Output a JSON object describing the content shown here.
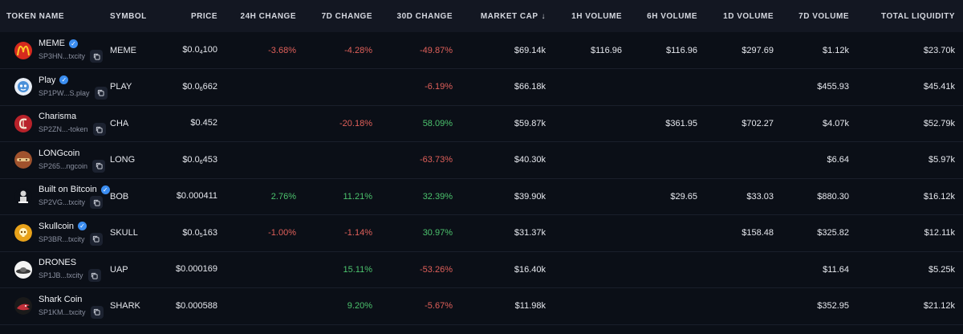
{
  "headers": {
    "token_name": "TOKEN NAME",
    "symbol": "SYMBOL",
    "price": "PRICE",
    "change_24h": "24H CHANGE",
    "change_7d": "7D CHANGE",
    "change_30d": "30D CHANGE",
    "market_cap": "MARKET CAP",
    "market_cap_sort_icon": "↓",
    "vol_1h": "1H VOLUME",
    "vol_6h": "6H VOLUME",
    "vol_1d": "1D VOLUME",
    "vol_7d": "7D VOLUME",
    "liquidity": "TOTAL LIQUIDITY"
  },
  "rows": [
    {
      "name": "MEME",
      "verified": true,
      "address": "SP3HN...txcity",
      "symbol": "MEME",
      "price_prefix": "$0.0",
      "price_sub": "4",
      "price_rest": "100",
      "c24": "-3.68%",
      "c24_dir": "neg",
      "c7": "-4.28%",
      "c7_dir": "neg",
      "c30": "-49.87%",
      "c30_dir": "neg",
      "mcap": "$69.14k",
      "v1h": "$116.96",
      "v6h": "$116.96",
      "v1d": "$297.69",
      "v7d": "$1.12k",
      "liq": "$23.70k",
      "logo": "golden-arches-icon",
      "logo_color": "#d62a1e"
    },
    {
      "name": "Play",
      "verified": true,
      "address": "SP1PW...S.play",
      "symbol": "PLAY",
      "price_prefix": "$0.0",
      "price_sub": "6",
      "price_rest": "662",
      "c24": "",
      "c24_dir": "",
      "c7": "",
      "c7_dir": "",
      "c30": "-6.19%",
      "c30_dir": "neg",
      "mcap": "$66.18k",
      "v1h": "",
      "v6h": "",
      "v1d": "",
      "v7d": "$455.93",
      "liq": "$45.41k",
      "logo": "play-mascot-icon",
      "logo_color": "#4a90d9"
    },
    {
      "name": "Charisma",
      "verified": false,
      "address": "SP2ZN...-token",
      "symbol": "CHA",
      "price_prefix": "$0.452",
      "price_sub": "",
      "price_rest": "",
      "c24": "",
      "c24_dir": "",
      "c7": "-20.18%",
      "c7_dir": "neg",
      "c30": "58.09%",
      "c30_dir": "pos",
      "mcap": "$59.87k",
      "v1h": "",
      "v6h": "$361.95",
      "v1d": "$702.27",
      "v7d": "$4.07k",
      "liq": "$52.79k",
      "logo": "charisma-c-icon",
      "logo_color": "#b8222a"
    },
    {
      "name": "LONGcoin",
      "verified": false,
      "address": "SP265...ngcoin",
      "symbol": "LONG",
      "price_prefix": "$0.0",
      "price_sub": "6",
      "price_rest": "453",
      "c24": "",
      "c24_dir": "",
      "c7": "",
      "c7_dir": "",
      "c30": "-63.73%",
      "c30_dir": "neg",
      "mcap": "$40.30k",
      "v1h": "",
      "v6h": "",
      "v1d": "",
      "v7d": "$6.64",
      "liq": "$5.97k",
      "logo": "longcoin-icon",
      "logo_color": "#a0522d"
    },
    {
      "name": "Built on Bitcoin",
      "verified": true,
      "address": "SP2VG...txcity",
      "symbol": "BOB",
      "price_prefix": "$0.000411",
      "price_sub": "",
      "price_rest": "",
      "c24": "2.76%",
      "c24_dir": "pos",
      "c7": "11.21%",
      "c7_dir": "pos",
      "c30": "32.39%",
      "c30_dir": "pos",
      "mcap": "$39.90k",
      "v1h": "",
      "v6h": "$29.65",
      "v1d": "$33.03",
      "v7d": "$880.30",
      "liq": "$16.12k",
      "logo": "bob-figure-icon",
      "logo_color": "#2a2a2a"
    },
    {
      "name": "Skullcoin",
      "verified": true,
      "address": "SP3BR...txcity",
      "symbol": "SKULL",
      "price_prefix": "$0.0",
      "price_sub": "5",
      "price_rest": "163",
      "c24": "-1.00%",
      "c24_dir": "neg",
      "c7": "-1.14%",
      "c7_dir": "neg",
      "c30": "30.97%",
      "c30_dir": "pos",
      "mcap": "$31.37k",
      "v1h": "",
      "v6h": "",
      "v1d": "$158.48",
      "v7d": "$325.82",
      "liq": "$12.11k",
      "logo": "skull-coin-icon",
      "logo_color": "#e8a21a"
    },
    {
      "name": "DRONES",
      "verified": false,
      "address": "SP1JB...txcity",
      "symbol": "UAP",
      "price_prefix": "$0.000169",
      "price_sub": "",
      "price_rest": "",
      "c24": "",
      "c24_dir": "",
      "c7": "15.11%",
      "c7_dir": "pos",
      "c30": "-53.26%",
      "c30_dir": "neg",
      "mcap": "$16.40k",
      "v1h": "",
      "v6h": "",
      "v1d": "",
      "v7d": "$11.64",
      "liq": "$5.25k",
      "logo": "ufo-icon",
      "logo_color": "#dcdcdc"
    },
    {
      "name": "Shark Coin",
      "verified": false,
      "address": "SP1KM...txcity",
      "symbol": "SHARK",
      "price_prefix": "$0.000588",
      "price_sub": "",
      "price_rest": "",
      "c24": "",
      "c24_dir": "",
      "c7": "9.20%",
      "c7_dir": "pos",
      "c30": "-5.67%",
      "c30_dir": "neg",
      "mcap": "$11.98k",
      "v1h": "",
      "v6h": "",
      "v1d": "",
      "v7d": "$352.95",
      "liq": "$21.12k",
      "logo": "shark-icon",
      "logo_color": "#c0303a"
    }
  ]
}
